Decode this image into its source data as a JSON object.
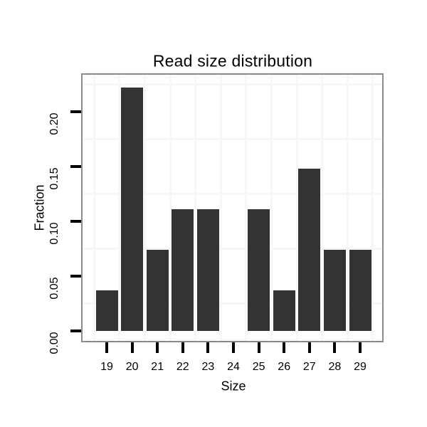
{
  "chart_data": {
    "type": "bar",
    "title": "Read size distribution",
    "xlabel": "Size",
    "ylabel": "Fraction",
    "categories": [
      "19",
      "20",
      "21",
      "22",
      "23",
      "24",
      "25",
      "26",
      "27",
      "28",
      "29"
    ],
    "values": [
      0.037,
      0.2222,
      0.0741,
      0.1111,
      0.1111,
      0,
      0.1111,
      0.037,
      0.1481,
      0.0741,
      0.0741
    ],
    "y_ticks": [
      {
        "value": 0.0,
        "label": "0.00"
      },
      {
        "value": 0.05,
        "label": "0.05"
      },
      {
        "value": 0.1,
        "label": "0.10"
      },
      {
        "value": 0.15,
        "label": "0.15"
      },
      {
        "value": 0.2,
        "label": "0.20"
      }
    ],
    "ylim": [
      -0.011,
      0.234
    ],
    "grid": "minor-gridlines-only",
    "legend": "none",
    "colors": {
      "bar_fill": "#333333",
      "panel_border": "#8c8c8c",
      "minor_grid": "#f7f7f7",
      "tick_mark": "#000000",
      "text": "#000000",
      "background": "#ffffff"
    }
  }
}
